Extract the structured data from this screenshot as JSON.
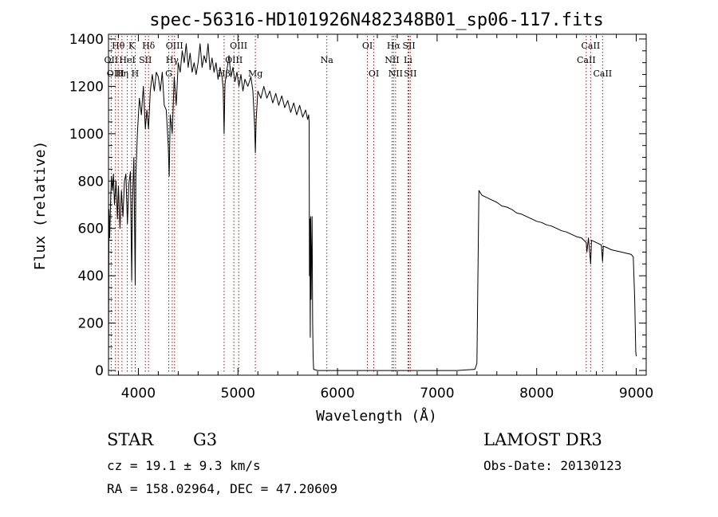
{
  "chart_data": {
    "type": "line",
    "title": "spec-56316-HD101926N482348B01_sp06-117.fits",
    "xlabel": "Wavelength (Å)",
    "ylabel": "Flux (relative)",
    "xlim": [
      3700,
      9100
    ],
    "ylim": [
      -20,
      1420
    ],
    "xticks": [
      4000,
      5000,
      6000,
      7000,
      8000,
      9000
    ],
    "yticks": [
      0,
      200,
      400,
      600,
      800,
      1000,
      1200,
      1400
    ],
    "series": [
      {
        "name": "spectrum",
        "points": [
          [
            3700,
            20
          ],
          [
            3705,
            680
          ],
          [
            3712,
            560
          ],
          [
            3720,
            700
          ],
          [
            3730,
            820
          ],
          [
            3740,
            760
          ],
          [
            3750,
            830
          ],
          [
            3760,
            700
          ],
          [
            3775,
            800
          ],
          [
            3790,
            640
          ],
          [
            3800,
            780
          ],
          [
            3815,
            600
          ],
          [
            3830,
            760
          ],
          [
            3845,
            650
          ],
          [
            3860,
            800
          ],
          [
            3875,
            830
          ],
          [
            3890,
            620
          ],
          [
            3905,
            790
          ],
          [
            3920,
            840
          ],
          [
            3933,
            380
          ],
          [
            3940,
            700
          ],
          [
            3955,
            900
          ],
          [
            3968,
            360
          ],
          [
            3975,
            820
          ],
          [
            3990,
            1000
          ],
          [
            4010,
            1150
          ],
          [
            4030,
            1080
          ],
          [
            4050,
            1200
          ],
          [
            4070,
            1020
          ],
          [
            4085,
            1100
          ],
          [
            4102,
            1020
          ],
          [
            4120,
            1180
          ],
          [
            4140,
            1250
          ],
          [
            4160,
            1180
          ],
          [
            4180,
            1260
          ],
          [
            4200,
            1240
          ],
          [
            4220,
            1180
          ],
          [
            4240,
            1260
          ],
          [
            4260,
            1120
          ],
          [
            4280,
            1100
          ],
          [
            4300,
            950
          ],
          [
            4310,
            820
          ],
          [
            4320,
            1080
          ],
          [
            4340,
            1000
          ],
          [
            4360,
            1240
          ],
          [
            4380,
            1120
          ],
          [
            4400,
            1300
          ],
          [
            4420,
            1260
          ],
          [
            4440,
            1350
          ],
          [
            4460,
            1300
          ],
          [
            4480,
            1380
          ],
          [
            4500,
            1280
          ],
          [
            4520,
            1340
          ],
          [
            4540,
            1260
          ],
          [
            4560,
            1300
          ],
          [
            4580,
            1250
          ],
          [
            4600,
            1300
          ],
          [
            4620,
            1380
          ],
          [
            4640,
            1280
          ],
          [
            4660,
            1330
          ],
          [
            4680,
            1300
          ],
          [
            4700,
            1380
          ],
          [
            4720,
            1270
          ],
          [
            4740,
            1320
          ],
          [
            4760,
            1260
          ],
          [
            4780,
            1300
          ],
          [
            4800,
            1230
          ],
          [
            4820,
            1280
          ],
          [
            4840,
            1240
          ],
          [
            4852,
            1190
          ],
          [
            4861,
            1000
          ],
          [
            4870,
            1210
          ],
          [
            4890,
            1270
          ],
          [
            4910,
            1330
          ],
          [
            4930,
            1240
          ],
          [
            4950,
            1280
          ],
          [
            4970,
            1220
          ],
          [
            4990,
            1260
          ],
          [
            5010,
            1200
          ],
          [
            5030,
            1250
          ],
          [
            5050,
            1180
          ],
          [
            5070,
            1230
          ],
          [
            5100,
            1200
          ],
          [
            5130,
            1240
          ],
          [
            5150,
            1180
          ],
          [
            5167,
            1040
          ],
          [
            5175,
            920
          ],
          [
            5183,
            1060
          ],
          [
            5200,
            1180
          ],
          [
            5230,
            1150
          ],
          [
            5260,
            1200
          ],
          [
            5290,
            1150
          ],
          [
            5320,
            1180
          ],
          [
            5350,
            1130
          ],
          [
            5380,
            1170
          ],
          [
            5410,
            1120
          ],
          [
            5440,
            1160
          ],
          [
            5470,
            1110
          ],
          [
            5500,
            1140
          ],
          [
            5530,
            1090
          ],
          [
            5560,
            1130
          ],
          [
            5590,
            1080
          ],
          [
            5620,
            1120
          ],
          [
            5650,
            1070
          ],
          [
            5680,
            1100
          ],
          [
            5700,
            1060
          ],
          [
            5710,
            1080
          ],
          [
            5715,
            1050
          ],
          [
            5718,
            400
          ],
          [
            5722,
            640
          ],
          [
            5726,
            140
          ],
          [
            5730,
            650
          ],
          [
            5735,
            300
          ],
          [
            5740,
            500
          ],
          [
            5745,
            650
          ],
          [
            5750,
            200
          ],
          [
            5755,
            60
          ],
          [
            5760,
            5
          ],
          [
            5800,
            0
          ],
          [
            6000,
            0
          ],
          [
            6500,
            0
          ],
          [
            7000,
            0
          ],
          [
            7200,
            0
          ],
          [
            7380,
            5
          ],
          [
            7400,
            30
          ],
          [
            7420,
            760
          ],
          [
            7450,
            740
          ],
          [
            7500,
            730
          ],
          [
            7550,
            720
          ],
          [
            7600,
            710
          ],
          [
            7650,
            695
          ],
          [
            7700,
            690
          ],
          [
            7750,
            680
          ],
          [
            7800,
            665
          ],
          [
            7850,
            660
          ],
          [
            7900,
            650
          ],
          [
            7950,
            640
          ],
          [
            8000,
            630
          ],
          [
            8050,
            625
          ],
          [
            8100,
            615
          ],
          [
            8150,
            610
          ],
          [
            8200,
            600
          ],
          [
            8250,
            590
          ],
          [
            8300,
            585
          ],
          [
            8350,
            575
          ],
          [
            8400,
            565
          ],
          [
            8450,
            560
          ],
          [
            8498,
            540
          ],
          [
            8505,
            500
          ],
          [
            8520,
            560
          ],
          [
            8542,
            450
          ],
          [
            8550,
            550
          ],
          [
            8600,
            540
          ],
          [
            8650,
            530
          ],
          [
            8662,
            460
          ],
          [
            8670,
            525
          ],
          [
            8700,
            520
          ],
          [
            8750,
            510
          ],
          [
            8800,
            505
          ],
          [
            8850,
            500
          ],
          [
            8900,
            495
          ],
          [
            8950,
            490
          ],
          [
            8970,
            480
          ],
          [
            8985,
            300
          ],
          [
            8995,
            80
          ],
          [
            9000,
            60
          ]
        ]
      }
    ],
    "spectral_lines": [
      {
        "label": "Hθ",
        "x": 3798,
        "row": 0
      },
      {
        "label": "OII",
        "x": 3727,
        "row": 1
      },
      {
        "label": "OIII",
        "x": 3770,
        "row": 2
      },
      {
        "label": "K",
        "x": 3933,
        "row": 0
      },
      {
        "label": "HeI",
        "x": 3889,
        "row": 1
      },
      {
        "label": "Hη",
        "x": 3835,
        "row": 2
      },
      {
        "label": "Hδ",
        "x": 4102,
        "row": 0
      },
      {
        "label": "SII",
        "x": 4070,
        "row": 1
      },
      {
        "label": "H",
        "x": 3968,
        "row": 2
      },
      {
        "label": "OIII",
        "x": 4363,
        "row": 0
      },
      {
        "label": "Hγ",
        "x": 4340,
        "row": 1
      },
      {
        "label": "G",
        "x": 4305,
        "row": 2
      },
      {
        "label": "OIII",
        "x": 5007,
        "row": 0
      },
      {
        "label": "OIII",
        "x": 4959,
        "row": 1
      },
      {
        "label": "Hβ",
        "x": 4861,
        "row": 2
      },
      {
        "label": "Mg",
        "x": 5175,
        "row": 2
      },
      {
        "label": "Na",
        "x": 5893,
        "row": 1
      },
      {
        "label": "OI",
        "x": 6300,
        "row": 0
      },
      {
        "label": "OI",
        "x": 6364,
        "row": 2
      },
      {
        "label": "Hα",
        "x": 6563,
        "row": 0
      },
      {
        "label": "NII",
        "x": 6548,
        "row": 1
      },
      {
        "label": "NII",
        "x": 6583,
        "row": 2
      },
      {
        "label": "SII",
        "x": 6717,
        "row": 0
      },
      {
        "label": "Li",
        "x": 6708,
        "row": 1
      },
      {
        "label": "SII",
        "x": 6731,
        "row": 2
      },
      {
        "label": "CaII",
        "x": 8542,
        "row": 0
      },
      {
        "label": "CaII",
        "x": 8498,
        "row": 1
      },
      {
        "label": "CaII",
        "x": 8662,
        "row": 2
      }
    ]
  },
  "info": {
    "obj_class": "STAR",
    "subclass": "G3",
    "survey": "LAMOST DR3",
    "cz": "cz = 19.1 ± 9.3 km/s",
    "obs_date": "Obs-Date: 20130123",
    "coords": "RA = 158.02964, DEC =  47.20609"
  }
}
